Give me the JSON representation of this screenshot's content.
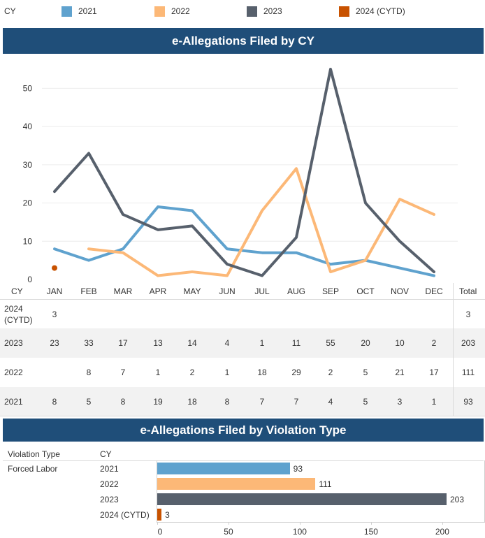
{
  "legend": {
    "title": "CY",
    "items": [
      {
        "label": "2021",
        "color": "#5fa2ce"
      },
      {
        "label": "2022",
        "color": "#fcb877"
      },
      {
        "label": "2023",
        "color": "#57606c"
      },
      {
        "label": "2024 (CYTD)",
        "color": "#c85200"
      }
    ]
  },
  "line_section": {
    "title": "e-Allegations Filed by CY"
  },
  "table": {
    "header": {
      "cy": "CY",
      "total": "Total"
    },
    "months": [
      "JAN",
      "FEB",
      "MAR",
      "APR",
      "MAY",
      "JUN",
      "JUL",
      "AUG",
      "SEP",
      "OCT",
      "NOV",
      "DEC"
    ],
    "rows": [
      {
        "label": "2024 (CYTD)",
        "cells": [
          "3",
          "",
          "",
          "",
          "",
          "",
          "",
          "",
          "",
          "",
          "",
          ""
        ],
        "total": "3"
      },
      {
        "label": "2023",
        "cells": [
          "23",
          "33",
          "17",
          "13",
          "14",
          "4",
          "1",
          "11",
          "55",
          "20",
          "10",
          "2"
        ],
        "total": "203"
      },
      {
        "label": "2022",
        "cells": [
          "",
          "8",
          "7",
          "1",
          "2",
          "1",
          "18",
          "29",
          "2",
          "5",
          "21",
          "17"
        ],
        "total": "111"
      },
      {
        "label": "2021",
        "cells": [
          "8",
          "5",
          "8",
          "19",
          "18",
          "8",
          "7",
          "7",
          "4",
          "5",
          "3",
          "1"
        ],
        "total": "93"
      }
    ]
  },
  "bar_section": {
    "title": "e-Allegations Filed by Violation Type",
    "col_violation": "Violation Type",
    "col_cy": "CY",
    "violation_type": "Forced Labor"
  },
  "chart_data": [
    {
      "type": "line",
      "title": "e-Allegations Filed by CY",
      "categories": [
        "JAN",
        "FEB",
        "MAR",
        "APR",
        "MAY",
        "JUN",
        "JUL",
        "AUG",
        "SEP",
        "OCT",
        "NOV",
        "DEC"
      ],
      "y_ticks": [
        "0",
        "10",
        "20",
        "30",
        "40",
        "50"
      ],
      "ylim": [
        0,
        57
      ],
      "grid": true,
      "series": [
        {
          "name": "2021",
          "color": "#5fa2ce",
          "values": [
            8,
            5,
            8,
            19,
            18,
            8,
            7,
            7,
            4,
            5,
            3,
            1
          ]
        },
        {
          "name": "2022",
          "color": "#fcb877",
          "values": [
            null,
            8,
            7,
            1,
            2,
            1,
            18,
            29,
            2,
            5,
            21,
            17
          ]
        },
        {
          "name": "2023",
          "color": "#57606c",
          "values": [
            23,
            33,
            17,
            13,
            14,
            4,
            1,
            11,
            55,
            20,
            10,
            2
          ]
        },
        {
          "name": "2024 (CYTD)",
          "color": "#c85200",
          "values": [
            3,
            null,
            null,
            null,
            null,
            null,
            null,
            null,
            null,
            null,
            null,
            null
          ]
        }
      ]
    },
    {
      "type": "bar",
      "title": "e-Allegations Filed by Violation Type",
      "group": "Forced Labor",
      "categories": [
        "2021",
        "2022",
        "2023",
        "2024 (CYTD)"
      ],
      "values": [
        93,
        111,
        203,
        3
      ],
      "value_labels": [
        "93",
        "111",
        "203",
        "3"
      ],
      "colors": [
        "#5fa2ce",
        "#fcb877",
        "#57606c",
        "#c85200"
      ],
      "x_ticks": [
        "0",
        "50",
        "100",
        "150",
        "200"
      ],
      "xlim": [
        0,
        230
      ]
    }
  ]
}
